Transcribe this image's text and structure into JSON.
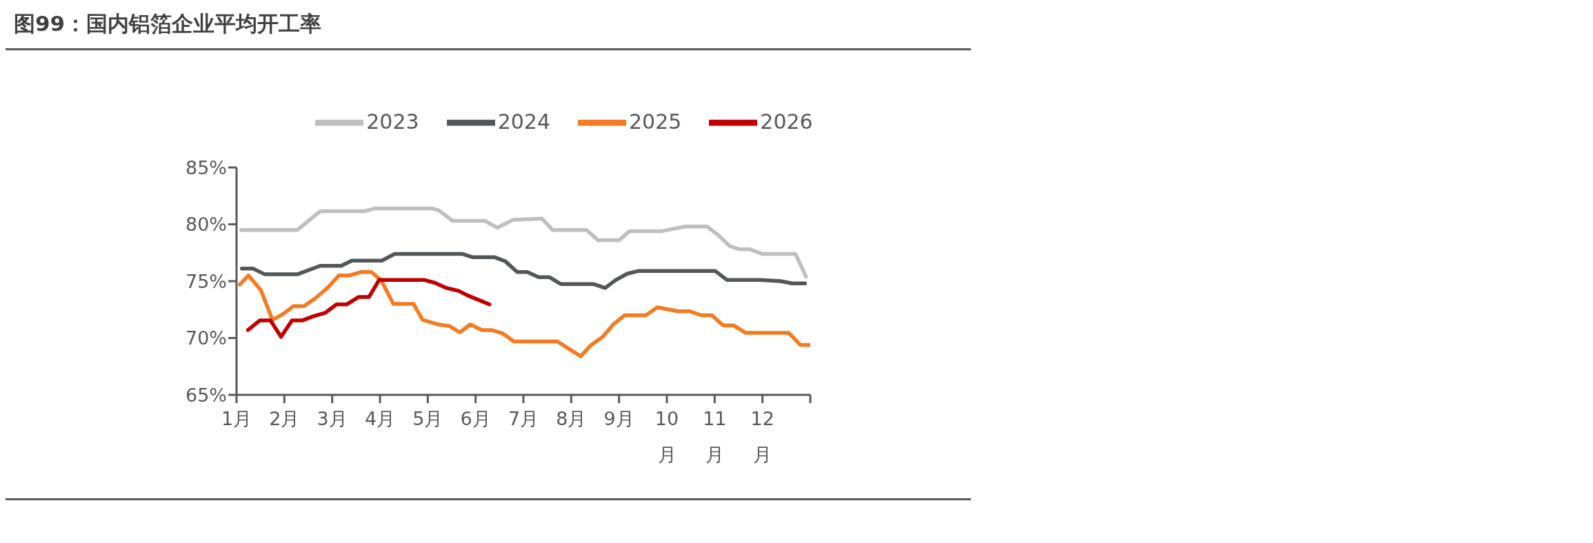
{
  "chart_data": {
    "type": "line",
    "title": "图99：国内铝箔企业平均开工率",
    "xlim": [
      1,
      13
    ],
    "xticks": [
      {
        "value": 1,
        "label": "1月"
      },
      {
        "value": 2,
        "label": "2月"
      },
      {
        "value": 3,
        "label": "3月"
      },
      {
        "value": 4,
        "label": "4月"
      },
      {
        "value": 5,
        "label": "5月"
      },
      {
        "value": 6,
        "label": "6月"
      },
      {
        "value": 7,
        "label": "7月"
      },
      {
        "value": 8,
        "label": "8月"
      },
      {
        "value": 9,
        "label": "9月"
      },
      {
        "value": 10,
        "label": "10月"
      },
      {
        "value": 11,
        "label": "11月"
      },
      {
        "value": 12,
        "label": "12月"
      },
      {
        "value": 13,
        "label": null
      }
    ],
    "ylim": [
      65,
      85
    ],
    "yticks": [
      {
        "value": 65,
        "label": "65%"
      },
      {
        "value": 70,
        "label": "70%"
      },
      {
        "value": 75,
        "label": "75%"
      },
      {
        "value": 80,
        "label": "80%"
      },
      {
        "value": 85,
        "label": "85%"
      }
    ],
    "grid": false,
    "legend": "top",
    "marker": "none",
    "line_style": "solid",
    "series": [
      {
        "name": "2023",
        "color": "#bfbfbf",
        "x": [
          1.1,
          2.27,
          2.75,
          3.68,
          3.9,
          5.09,
          5.24,
          5.52,
          6.2,
          6.45,
          6.79,
          7.39,
          7.61,
          8.32,
          8.56,
          9.0,
          9.22,
          9.9,
          10.38,
          10.84,
          11.06,
          11.31,
          11.52,
          11.74,
          11.99,
          12.69,
          12.91
        ],
        "values": [
          79.5,
          79.5,
          81.15,
          81.15,
          81.4,
          81.4,
          81.2,
          80.3,
          80.3,
          79.7,
          80.4,
          80.5,
          79.5,
          79.5,
          78.6,
          78.6,
          79.4,
          79.4,
          79.8,
          79.8,
          79.1,
          78.1,
          77.8,
          77.8,
          77.4,
          77.4,
          75.4
        ]
      },
      {
        "name": "2024",
        "color": "#53575a",
        "x": [
          1.11,
          1.35,
          1.59,
          2.27,
          2.75,
          3.19,
          3.41,
          4.04,
          4.31,
          5.72,
          5.94,
          6.4,
          6.62,
          6.87,
          7.08,
          7.32,
          7.54,
          7.78,
          8.46,
          8.71,
          8.93,
          9.17,
          9.41,
          11.01,
          11.26,
          11.94,
          12.38,
          12.62,
          12.89
        ],
        "values": [
          76.1,
          76.1,
          75.6,
          75.6,
          76.35,
          76.35,
          76.8,
          76.8,
          77.4,
          77.4,
          77.1,
          77.1,
          76.75,
          75.8,
          75.8,
          75.35,
          75.35,
          74.75,
          74.75,
          74.4,
          75.1,
          75.65,
          75.9,
          75.9,
          75.1,
          75.1,
          75.0,
          74.8,
          74.8
        ]
      },
      {
        "name": "2025",
        "color": "#f47b20",
        "x": [
          1.07,
          1.25,
          1.51,
          1.75,
          1.97,
          2.19,
          2.41,
          2.65,
          2.9,
          3.14,
          3.36,
          3.6,
          3.82,
          4.02,
          4.28,
          4.7,
          4.89,
          5.21,
          5.45,
          5.67,
          5.89,
          6.13,
          6.33,
          6.57,
          6.8,
          7.71,
          7.95,
          8.2,
          8.42,
          8.66,
          8.88,
          9.12,
          9.56,
          9.8,
          10.24,
          10.48,
          10.72,
          10.94,
          11.18,
          11.4,
          11.65,
          12.55,
          12.79,
          13.0
        ],
        "values": [
          74.7,
          75.5,
          74.2,
          71.6,
          72.1,
          72.8,
          72.8,
          73.5,
          74.4,
          75.5,
          75.5,
          75.8,
          75.8,
          75.1,
          73.0,
          73.0,
          71.6,
          71.2,
          71.05,
          70.5,
          71.2,
          70.7,
          70.7,
          70.4,
          69.7,
          69.7,
          69.05,
          68.4,
          69.4,
          70.1,
          71.2,
          72.0,
          72.0,
          72.7,
          72.35,
          72.35,
          72.0,
          72.0,
          71.1,
          71.1,
          70.45,
          70.45,
          69.4,
          69.4
        ]
      },
      {
        "name": "2026",
        "color": "#c00000",
        "x": [
          1.24,
          1.49,
          1.71,
          1.93,
          2.16,
          2.38,
          2.6,
          2.85,
          3.09,
          3.3,
          3.55,
          3.77,
          3.98,
          4.93,
          5.15,
          5.39,
          5.64,
          5.83,
          6.29
        ],
        "values": [
          70.7,
          71.55,
          71.55,
          70.1,
          71.55,
          71.55,
          71.9,
          72.2,
          72.95,
          72.95,
          73.6,
          73.6,
          75.1,
          75.1,
          74.85,
          74.4,
          74.15,
          73.75,
          72.95
        ]
      }
    ]
  }
}
